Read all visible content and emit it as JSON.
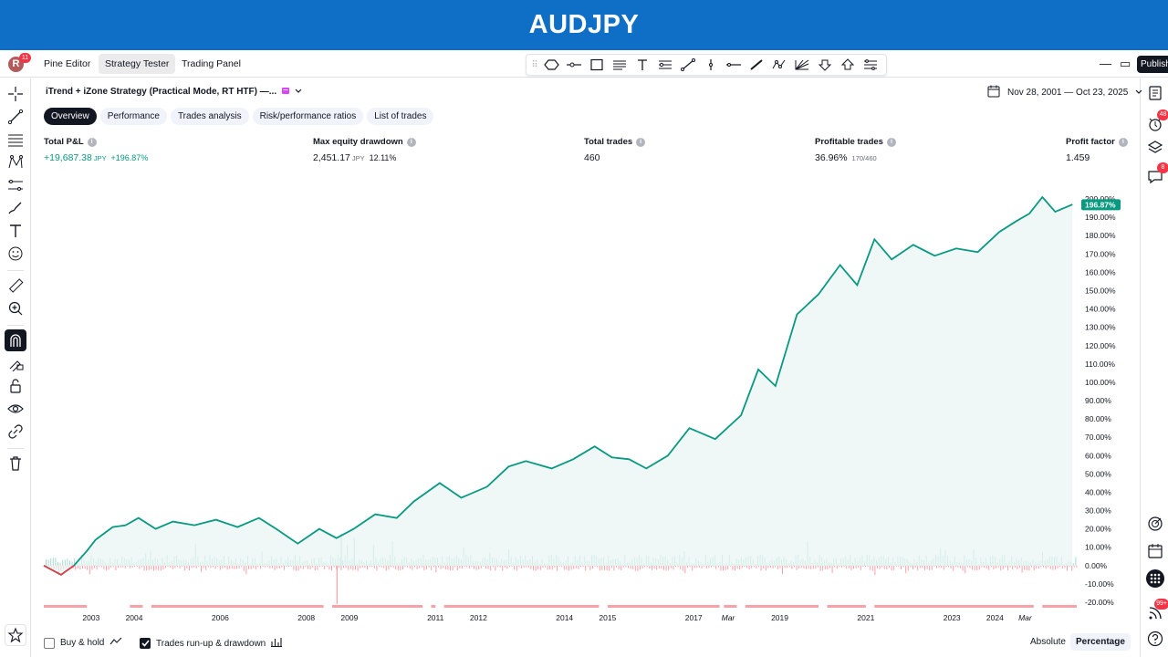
{
  "banner": {
    "title": "AUDJPY"
  },
  "topbar": {
    "avatar_letter": "R",
    "avatar_badge": "11",
    "tabs": [
      {
        "label": "Pine Editor",
        "active": false
      },
      {
        "label": "Strategy Tester",
        "active": true
      },
      {
        "label": "Trading Panel",
        "active": false
      }
    ],
    "publish_label": "Publish",
    "drawing_tools": [
      "polygon-icon",
      "h-ray-icon",
      "rectangle-icon",
      "text-lines-icon",
      "text-icon",
      "fib-icon",
      "trend-line-icon",
      "v-line-icon",
      "h-line-icon",
      "brush-icon",
      "pattern-icon",
      "gann-icon",
      "arrow-down-icon",
      "arrow-up-icon",
      "ranges-icon"
    ]
  },
  "strategy": {
    "title": "iTrend + iZone Strategy (Practical Mode, RT HTF) —...",
    "date_range": "Nov 28, 2001 — Oct 23, 2025"
  },
  "subtabs": [
    {
      "label": "Overview",
      "active": true
    },
    {
      "label": "Performance",
      "active": false
    },
    {
      "label": "Trades analysis",
      "active": false
    },
    {
      "label": "Risk/performance ratios",
      "active": false
    },
    {
      "label": "List of trades",
      "active": false
    }
  ],
  "metrics": {
    "total_pnl": {
      "label": "Total P&L",
      "value": "+19,687.38",
      "unit": "JPY",
      "pct": "+196.87%"
    },
    "max_dd": {
      "label": "Max equity drawdown",
      "value": "2,451.17",
      "unit": "JPY",
      "pct": "12.11%"
    },
    "total_trades": {
      "label": "Total trades",
      "value": "460"
    },
    "profitable": {
      "label": "Profitable trades",
      "value": "36.96%",
      "sub": "170/460"
    },
    "profit_factor": {
      "label": "Profit factor",
      "value": "1.459"
    }
  },
  "chart_data": {
    "type": "line",
    "series": [
      {
        "x": [
          2001.9,
          2002.3,
          2002.6,
          2002.9,
          2003.1,
          2003.5,
          2003.8,
          2004.1,
          2004.5,
          2004.9,
          2005.4,
          2005.9,
          2006.4,
          2006.9,
          2007.3,
          2007.8,
          2008.3,
          2008.7,
          2009.1,
          2009.6,
          2010.1,
          2010.5,
          2011.1,
          2011.6,
          2012.2,
          2012.7,
          2013.1,
          2013.7,
          2014.2,
          2014.7,
          2015.1,
          2015.5,
          2015.9,
          2016.4,
          2016.9,
          2017.5,
          2018.1,
          2018.5,
          2018.9,
          2019.4,
          2019.9,
          2020.4,
          2020.8,
          2021.2,
          2021.6,
          2022.1,
          2022.6,
          2023.1,
          2023.6,
          2024.1,
          2024.5,
          2024.8,
          2025.1,
          2025.4,
          2025.8
        ],
        "values": [
          0,
          -5,
          0,
          8,
          14,
          21,
          22,
          26,
          20,
          24,
          22,
          25,
          21,
          26,
          20,
          12,
          20,
          15,
          20,
          28,
          26,
          35,
          45,
          37,
          43,
          54,
          57,
          53,
          58,
          65,
          59,
          58,
          53,
          60,
          75,
          69,
          82,
          107,
          98,
          137,
          148,
          164,
          153,
          178,
          167,
          175,
          169,
          173,
          171,
          182,
          188,
          192,
          201,
          193,
          197
        ]
      }
    ],
    "ylim": [
      -20,
      205
    ],
    "y_ticks": [
      "200.00%",
      "190.00%",
      "180.00%",
      "170.00%",
      "160.00%",
      "150.00%",
      "140.00%",
      "130.00%",
      "120.00%",
      "110.00%",
      "100.00%",
      "90.00%",
      "80.00%",
      "70.00%",
      "60.00%",
      "50.00%",
      "40.00%",
      "30.00%",
      "20.00%",
      "10.00%",
      "0.00%",
      "-10.00%",
      "-20.00%"
    ],
    "x_ticks": [
      {
        "label": "2003",
        "x": 2003
      },
      {
        "label": "2004",
        "x": 2004
      },
      {
        "label": "2006",
        "x": 2006
      },
      {
        "label": "2008",
        "x": 2008
      },
      {
        "label": "2009",
        "x": 2009
      },
      {
        "label": "2011",
        "x": 2011
      },
      {
        "label": "2012",
        "x": 2012
      },
      {
        "label": "2014",
        "x": 2014
      },
      {
        "label": "2015",
        "x": 2015
      },
      {
        "label": "2017",
        "x": 2017
      },
      {
        "label": "Mar",
        "x": 2017.8
      },
      {
        "label": "2019",
        "x": 2019
      },
      {
        "label": "2021",
        "x": 2021
      },
      {
        "label": "2023",
        "x": 2023
      },
      {
        "label": "2024",
        "x": 2024
      },
      {
        "label": "Mar",
        "x": 2024.7
      }
    ],
    "last_value_label": "196.87%",
    "colors": {
      "equity": "#089981",
      "fill": "#e8f5f2",
      "drawdown": "#f7a1a8",
      "runup": "#a5dbcf",
      "badge": "#089981"
    }
  },
  "footer": {
    "buy_hold_label": "Buy & hold",
    "buy_hold_checked": false,
    "runup_label": "Trades run-up & drawdown",
    "runup_checked": true,
    "absolute_label": "Absolute",
    "percentage_label": "Percentage"
  },
  "rightbar_badges": {
    "alerts": "48",
    "chat": "8",
    "notifications": "99+"
  }
}
